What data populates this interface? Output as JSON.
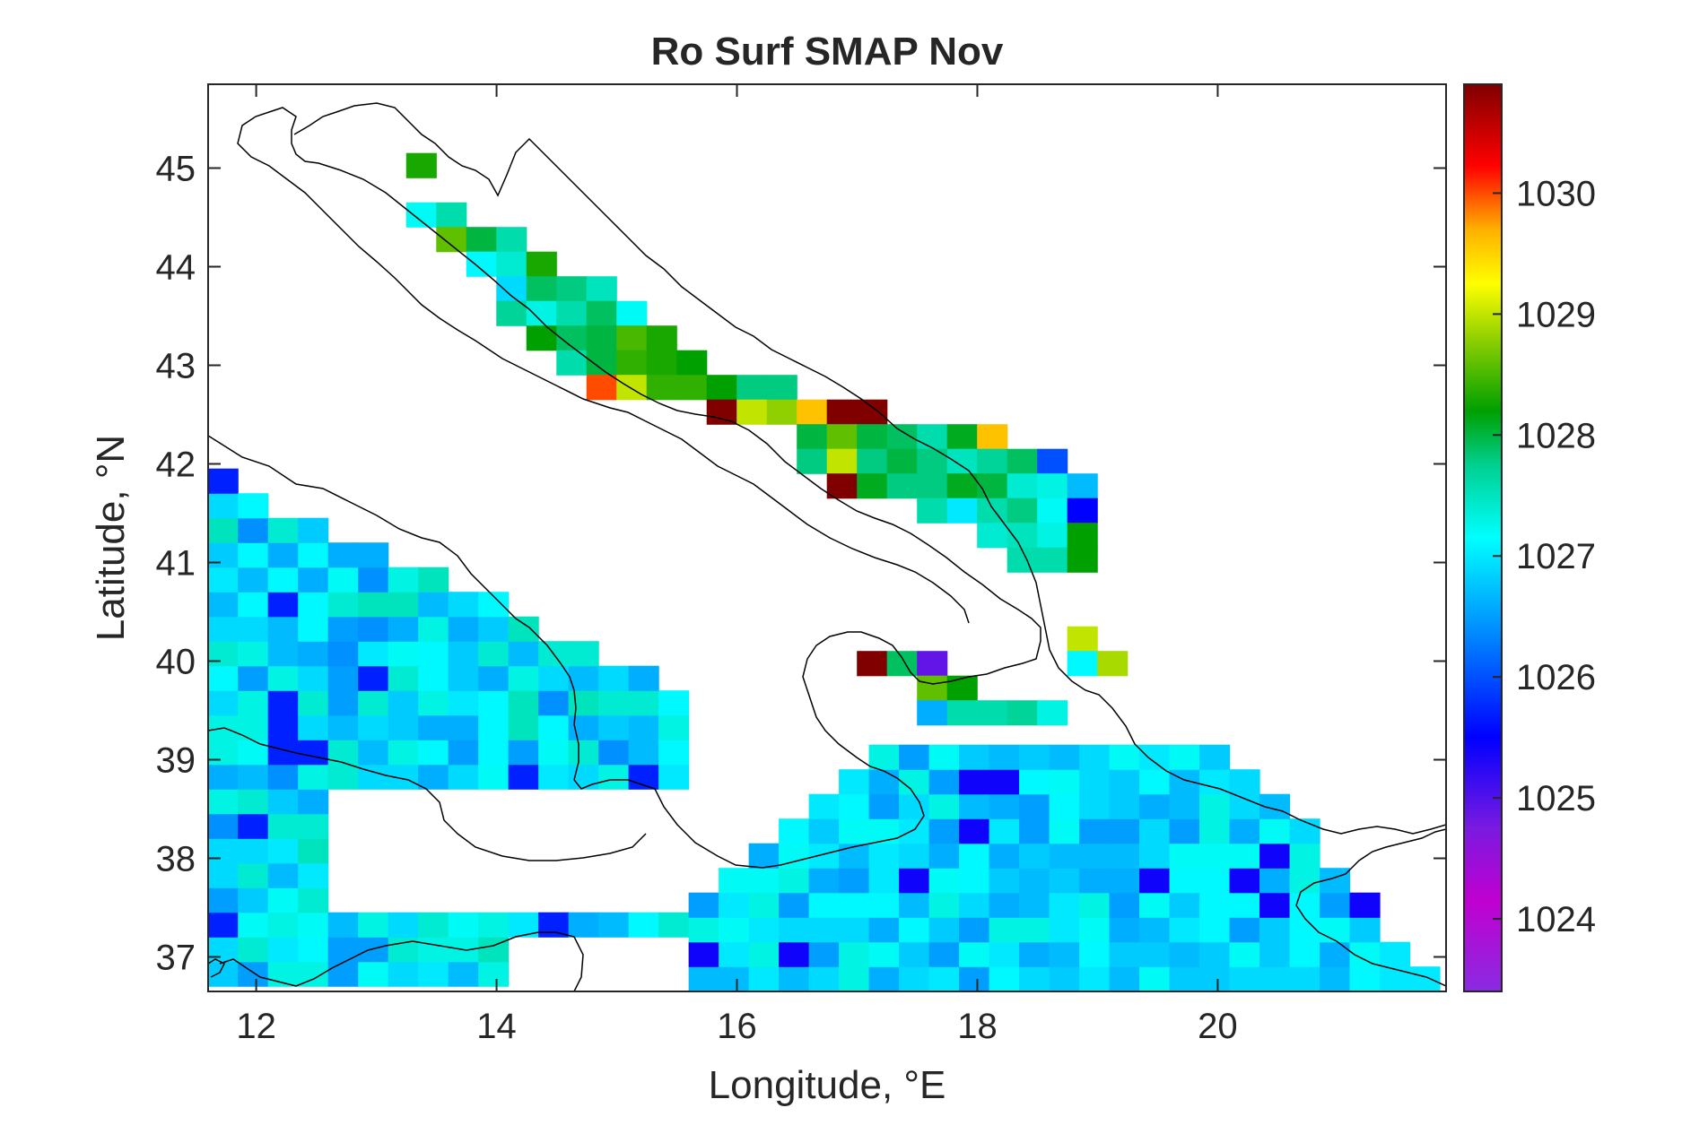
{
  "chart_data": {
    "type": "heatmap",
    "title": "Ro Surf SMAP Nov",
    "xlabel": "Longitude, °E",
    "ylabel": "Latitude, °N",
    "xlim": [
      11.6,
      21.9
    ],
    "ylim": [
      36.65,
      45.85
    ],
    "xticks": [
      12,
      14,
      16,
      18,
      20
    ],
    "xtick_labels": [
      "12",
      "14",
      "16",
      "18",
      "20"
    ],
    "yticks": [
      37,
      38,
      39,
      40,
      41,
      42,
      43,
      44,
      45
    ],
    "ytick_labels": [
      "37",
      "38",
      "39",
      "40",
      "41",
      "42",
      "43",
      "44",
      "45"
    ],
    "grid": false,
    "cell_size_deg": 0.25,
    "colorbar": {
      "colormap": "jet-like (purple → blue → cyan → green → yellow → red → dark red)",
      "range": [
        1023.4,
        1030.9
      ],
      "ticks": [
        1024,
        1025,
        1026,
        1027,
        1028,
        1029,
        1030
      ],
      "tick_labels": [
        "1024",
        "1025",
        "1026",
        "1027",
        "1028",
        "1029",
        "1030"
      ]
    },
    "grid_cells": [
      [
        13.25,
        44.9,
        1028.3
      ],
      [
        13.25,
        44.4,
        1027.2
      ],
      [
        13.5,
        44.4,
        1027.6
      ],
      [
        13.5,
        44.15,
        1028.6
      ],
      [
        13.75,
        44.15,
        1028.0
      ],
      [
        14.0,
        44.15,
        1027.6
      ],
      [
        13.75,
        43.9,
        1027.1
      ],
      [
        14.0,
        43.9,
        1027.4
      ],
      [
        14.25,
        43.9,
        1028.3
      ],
      [
        14.0,
        43.65,
        1026.9
      ],
      [
        14.25,
        43.65,
        1027.9
      ],
      [
        14.5,
        43.65,
        1027.8
      ],
      [
        14.75,
        43.65,
        1027.5
      ],
      [
        14.0,
        43.4,
        1027.7
      ],
      [
        14.25,
        43.4,
        1027.3
      ],
      [
        14.5,
        43.4,
        1027.6
      ],
      [
        14.75,
        43.4,
        1027.9
      ],
      [
        15.0,
        43.4,
        1027.2
      ],
      [
        14.25,
        43.15,
        1028.2
      ],
      [
        14.5,
        43.15,
        1027.9
      ],
      [
        14.75,
        43.15,
        1028.0
      ],
      [
        15.0,
        43.15,
        1028.5
      ],
      [
        15.25,
        43.15,
        1028.3
      ],
      [
        14.5,
        42.9,
        1027.6
      ],
      [
        14.75,
        42.9,
        1028.0
      ],
      [
        15.0,
        42.9,
        1028.4
      ],
      [
        15.25,
        42.9,
        1028.3
      ],
      [
        15.5,
        42.9,
        1028.2
      ],
      [
        14.75,
        42.65,
        1030.0
      ],
      [
        15.0,
        42.65,
        1029.0
      ],
      [
        15.25,
        42.65,
        1028.4
      ],
      [
        15.5,
        42.65,
        1028.4
      ],
      [
        15.75,
        42.65,
        1028.2
      ],
      [
        16.0,
        42.65,
        1027.8
      ],
      [
        16.25,
        42.65,
        1027.8
      ],
      [
        15.75,
        42.4,
        1030.9
      ],
      [
        16.0,
        42.4,
        1029.0
      ],
      [
        16.25,
        42.4,
        1028.8
      ],
      [
        16.5,
        42.4,
        1029.6
      ],
      [
        16.75,
        42.4,
        1030.9
      ],
      [
        17.0,
        42.4,
        1030.9
      ],
      [
        16.5,
        42.15,
        1028.0
      ],
      [
        16.75,
        42.15,
        1028.6
      ],
      [
        17.0,
        42.15,
        1028.0
      ],
      [
        17.25,
        42.15,
        1027.9
      ],
      [
        17.5,
        42.15,
        1027.6
      ],
      [
        17.75,
        42.15,
        1028.1
      ],
      [
        18.0,
        42.15,
        1029.6
      ],
      [
        16.5,
        41.9,
        1027.8
      ],
      [
        16.75,
        41.9,
        1029.0
      ],
      [
        17.0,
        41.9,
        1027.8
      ],
      [
        17.25,
        41.9,
        1028.0
      ],
      [
        17.5,
        41.9,
        1027.8
      ],
      [
        17.75,
        41.9,
        1027.5
      ],
      [
        18.0,
        41.9,
        1027.7
      ],
      [
        18.25,
        41.9,
        1027.9
      ],
      [
        18.5,
        41.9,
        1026.0
      ],
      [
        16.75,
        41.65,
        1030.9
      ],
      [
        17.0,
        41.65,
        1028.1
      ],
      [
        17.25,
        41.65,
        1027.8
      ],
      [
        17.5,
        41.65,
        1027.8
      ],
      [
        17.75,
        41.65,
        1028.1
      ],
      [
        18.0,
        41.65,
        1028.0
      ],
      [
        18.25,
        41.65,
        1027.4
      ],
      [
        18.5,
        41.65,
        1027.3
      ],
      [
        18.75,
        41.65,
        1026.7
      ],
      [
        17.5,
        41.4,
        1027.6
      ],
      [
        17.75,
        41.4,
        1027.0
      ],
      [
        18.0,
        41.4,
        1027.6
      ],
      [
        18.25,
        41.4,
        1027.8
      ],
      [
        18.5,
        41.4,
        1027.2
      ],
      [
        18.75,
        41.4,
        1025.5
      ],
      [
        18.0,
        41.15,
        1027.4
      ],
      [
        18.25,
        41.15,
        1027.5
      ],
      [
        18.5,
        41.15,
        1027.3
      ],
      [
        18.75,
        41.15,
        1028.2
      ],
      [
        18.25,
        40.9,
        1027.6
      ],
      [
        18.5,
        40.9,
        1027.6
      ],
      [
        18.75,
        40.9,
        1028.2
      ],
      [
        18.75,
        40.1,
        1029.0
      ],
      [
        18.75,
        39.85,
        1027.1
      ],
      [
        19.0,
        39.85,
        1028.9
      ],
      [
        17.0,
        39.85,
        1030.9
      ],
      [
        17.25,
        39.85,
        1027.9
      ],
      [
        17.5,
        39.85,
        1024.9
      ],
      [
        17.5,
        39.6,
        1028.6
      ],
      [
        17.75,
        39.6,
        1028.2
      ],
      [
        17.5,
        39.35,
        1026.6
      ],
      [
        17.75,
        39.35,
        1027.6
      ],
      [
        18.0,
        39.35,
        1027.6
      ],
      [
        18.25,
        39.35,
        1027.7
      ],
      [
        18.5,
        39.35,
        1027.3
      ]
    ]
  }
}
